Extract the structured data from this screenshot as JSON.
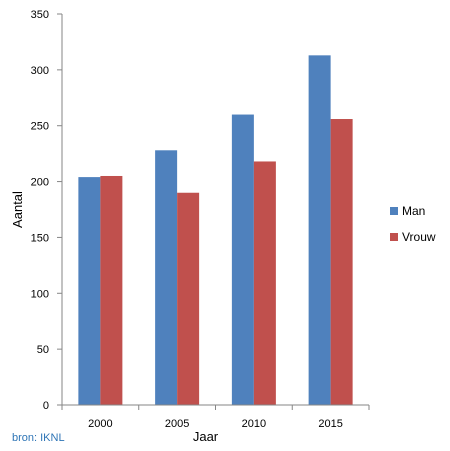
{
  "chart_data": {
    "type": "bar",
    "title": "",
    "xlabel": "Jaar",
    "ylabel": "Aantal",
    "categories": [
      "2000",
      "2005",
      "2010",
      "2015"
    ],
    "series": [
      {
        "name": "Man",
        "color": "#4f81bd",
        "values": [
          204,
          228,
          260,
          313
        ]
      },
      {
        "name": "Vrouw",
        "color": "#c0504d",
        "values": [
          205,
          190,
          218,
          256
        ]
      }
    ],
    "ylim": [
      0,
      350
    ],
    "yticks": [
      "0",
      "50",
      "100",
      "150",
      "200",
      "250",
      "300",
      "350"
    ],
    "grid": false,
    "legend_position": "right"
  },
  "source_note": "bron: IKNL"
}
